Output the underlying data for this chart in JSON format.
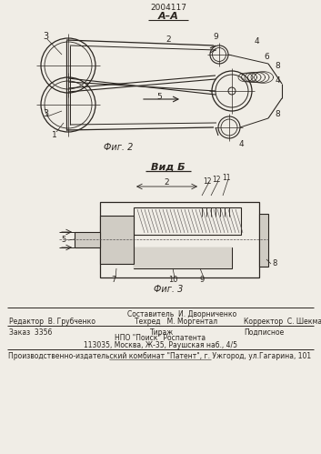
{
  "patent_number": "2004117",
  "bg_color": "#f0ede6",
  "text_color": "#2a2520",
  "line_color": "#2a2520",
  "fig2_label": "А–А",
  "fig2_caption": "Фиг. 2",
  "fig3_caption": "Вид Б",
  "fig3_sub_caption": "Фиг. 3",
  "footer_line1_center_top": "Составитель  И. Дворниченко",
  "footer_line1_left": "Редактор  В. Грубченко",
  "footer_line1_center": "Техред   М. Моргентал",
  "footer_line1_right": "Корректор  С. Шекмар",
  "footer_line2_left": "Заказ  3356",
  "footer_line2_center": "Тираж",
  "footer_line2_right": "Подписное",
  "footer_line3": "НПО \"Поиск\" Роспатента",
  "footer_line4": "113035, Москва, Ж-35, Раушская наб., 4/5",
  "footer_line5": "Производственно-издательский комбинат \"Патент\", г. Ужгород, ул.Гагарина, 101"
}
